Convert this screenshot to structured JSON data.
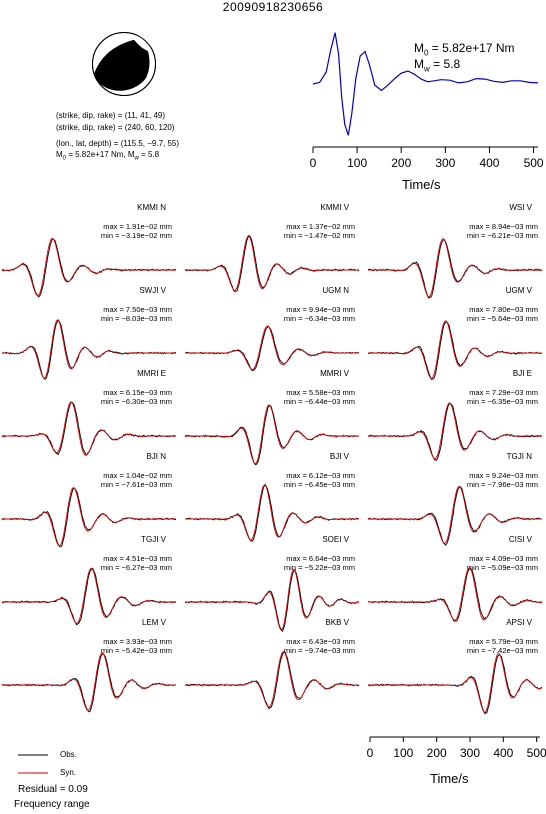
{
  "title": "20090918230656",
  "source_info": {
    "nodal_plane_1": "(strike, dip, rake) = (11, 41, 49)",
    "nodal_plane_2": "(strike, dip, rake) = (240, 60, 120)",
    "location": "(lon., lat, depth) = (115.5, −9.7, 55)",
    "moment_line": "M0 = 5.82e+17 Nm, Mw = 5.8"
  },
  "stf_annotation": {
    "m0_label": "M0 = 5.82e+17 Nm",
    "mw_label": "Mw = 5.8"
  },
  "legend": {
    "obs": "Obs.",
    "syn": "Syn."
  },
  "residual": "Residual = 0.09",
  "frequency_range": "Frequency range",
  "colors": {
    "observed": "#000000",
    "synthetic": "#dd0000",
    "stf": "#0000cc"
  },
  "chart_data": [
    {
      "type": "line",
      "name": "source-time-function",
      "xlabel": "Time/s",
      "xlim": [
        0,
        510
      ],
      "xticks": [
        0,
        100,
        200,
        300,
        400,
        500
      ],
      "series": [
        {
          "name": "",
          "x": [
            0,
            15,
            30,
            40,
            50,
            58,
            65,
            72,
            80,
            88,
            97,
            107,
            118,
            128,
            140,
            155,
            170,
            185,
            200,
            215,
            230,
            245,
            260,
            275,
            290,
            310,
            330,
            350,
            370,
            390,
            410,
            430,
            450,
            470,
            490,
            510
          ],
          "y": [
            0,
            0.03,
            0.22,
            0.62,
            0.95,
            0.55,
            -0.25,
            -0.75,
            -0.95,
            -0.55,
            0.1,
            0.52,
            0.6,
            0.35,
            -0.02,
            -0.12,
            -0.02,
            0.1,
            0.2,
            0.24,
            0.18,
            0.09,
            0.04,
            0.06,
            0.08,
            0.07,
            0.02,
            0.04,
            0.1,
            0.09,
            0.05,
            0.03,
            0.06,
            0.06,
            0.03,
            0.02
          ]
        }
      ]
    },
    {
      "type": "line",
      "name": "waveform-comparison",
      "xlabel": "Time/s",
      "xlim": [
        0,
        510
      ],
      "xticks": [
        0,
        100,
        200,
        300,
        400,
        500
      ],
      "series_names": [
        "Obs.",
        "Syn."
      ],
      "stations": [
        {
          "name": "KMMI N",
          "max": "max = 1.91e−02 mm",
          "min": "min = −3.19e−02 mm",
          "center": 0.26,
          "freq": 2.6,
          "amp": 1.0,
          "phase": 0.3
        },
        {
          "name": "KMMI V",
          "max": "max = 1.37e−02 mm",
          "min": "min = −1.47e−02 mm",
          "center": 0.36,
          "freq": 2.8,
          "amp": 1.0,
          "phase": 1.2
        },
        {
          "name": "WSI V",
          "max": "max = 8.94e−03 mm",
          "min": "min = −6.21e−03 mm",
          "center": 0.4,
          "freq": 2.7,
          "amp": 1.0,
          "phase": 0.2
        },
        {
          "name": "SWJI V",
          "max": "max = 7.50e−03 mm",
          "min": "min = −8.03e−03 mm",
          "center": 0.3,
          "freq": 2.9,
          "amp": 1.0,
          "phase": 0.6
        },
        {
          "name": "UGM N",
          "max": "max = 9.94e−03 mm",
          "min": "min = −6.34e−03 mm",
          "center": 0.46,
          "freq": 2.5,
          "amp": 0.8,
          "phase": 0.9
        },
        {
          "name": "UGM V",
          "max": "max = 7.80e−03 mm",
          "min": "min = −5.64e−03 mm",
          "center": 0.42,
          "freq": 2.7,
          "amp": 1.0,
          "phase": 0.4
        },
        {
          "name": "MMRI E",
          "max": "max = 6.15e−03 mm",
          "min": "min = −6.30e−03 mm",
          "center": 0.4,
          "freq": 2.6,
          "amp": 1.0,
          "phase": 1.5
        },
        {
          "name": "MMRI V",
          "max": "max = 5.58e−03 mm",
          "min": "min = −6.44e−03 mm",
          "center": 0.45,
          "freq": 2.8,
          "amp": 1.0,
          "phase": 0.1
        },
        {
          "name": "BJI E",
          "max": "max = 7.29e−03 mm",
          "min": "min = −6.35e−03 mm",
          "center": 0.45,
          "freq": 2.6,
          "amp": 1.0,
          "phase": 0.7
        },
        {
          "name": "BJI N",
          "max": "max = 1.04e−02 mm",
          "min": "min = −7.61e−03 mm",
          "center": 0.38,
          "freq": 2.7,
          "amp": 1.0,
          "phase": 0.2
        },
        {
          "name": "BJI V",
          "max": "max = 6.12e−03 mm",
          "min": "min = −6.45e−03 mm",
          "center": 0.45,
          "freq": 2.8,
          "amp": 1.0,
          "phase": 1.1
        },
        {
          "name": "TGJI N",
          "max": "max = 9.24e−03 mm",
          "min": "min = −7.96e−03 mm",
          "center": 0.5,
          "freq": 2.6,
          "amp": 1.0,
          "phase": 0.5
        },
        {
          "name": "TGJI V",
          "max": "max = 4.51e−03 mm",
          "min": "min = −6.27e−03 mm",
          "center": 0.5,
          "freq": 2.6,
          "amp": 1.0,
          "phase": 0.9
        },
        {
          "name": "SOEI V",
          "max": "max = 6.64e−03 mm",
          "min": "min = −5.22e−03 mm",
          "center": 0.6,
          "freq": 3.2,
          "amp": 1.0,
          "phase": 0.3
        },
        {
          "name": "CISI V",
          "max": "max = 4.09e−03 mm",
          "min": "min = −5.09e−03 mm",
          "center": 0.58,
          "freq": 2.6,
          "amp": 1.0,
          "phase": 1.3
        },
        {
          "name": "LEM V",
          "max": "max = 3.93e−03 mm",
          "min": "min = −5.42e−03 mm",
          "center": 0.55,
          "freq": 2.7,
          "amp": 1.0,
          "phase": 0.4
        },
        {
          "name": "BKB V",
          "max": "max = 6.43e−03 mm",
          "min": "min = −9.74e−03 mm",
          "center": 0.55,
          "freq": 2.6,
          "amp": 1.0,
          "phase": 0.8
        },
        {
          "name": "APSI V",
          "max": "max = 5.79e−03 mm",
          "min": "min = −7.42e−03 mm",
          "center": 0.72,
          "freq": 2.8,
          "amp": 1.0,
          "phase": 0.2
        }
      ]
    }
  ]
}
